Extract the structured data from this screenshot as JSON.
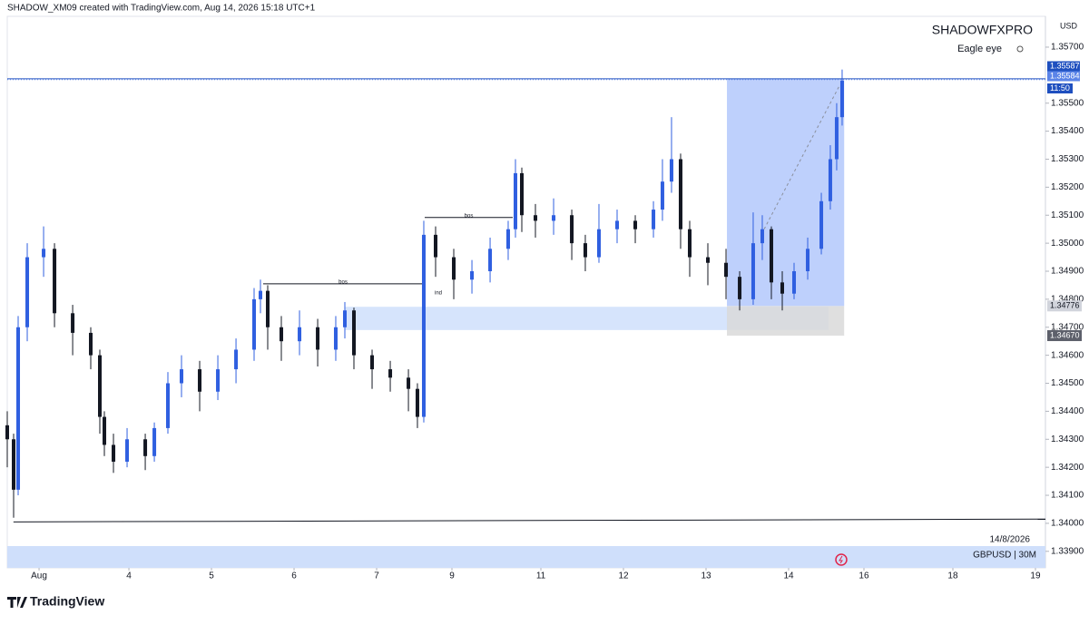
{
  "chart_data": {
    "type": "candlestick",
    "credit": "SHADOW_XM09 created with TradingView.com, Aug 14, 2026 15:18 UTC+1",
    "title": "SHADOWFXPRO",
    "subtitle": "Eagle eye",
    "currency": "USD",
    "date_label": "14/8/2026",
    "symbol": "GBPUSD | 30M",
    "brand": "TradingView",
    "up_color": "#2f5fe0",
    "down_color": "#131722",
    "grid": false,
    "xlim": [
      -0.385,
      12.187
    ],
    "ylim": [
      1.33841,
      1.3581
    ],
    "xticks": [
      {
        "value": 0,
        "label": "Aug"
      },
      {
        "value": 1.088,
        "label": "4"
      },
      {
        "value": 2.088,
        "label": "5"
      },
      {
        "value": 3.088,
        "label": "6"
      },
      {
        "value": 4.088,
        "label": "7"
      },
      {
        "value": 5.0,
        "label": "9"
      },
      {
        "value": 6.077,
        "label": "11"
      },
      {
        "value": 7.077,
        "label": "12"
      },
      {
        "value": 8.077,
        "label": "13"
      },
      {
        "value": 9.077,
        "label": "14"
      },
      {
        "value": 9.989,
        "label": "16"
      },
      {
        "value": 11.066,
        "label": "18"
      },
      {
        "value": 12.066,
        "label": "19"
      }
    ],
    "yticks": [
      {
        "value": 1.357,
        "label": "1.35700"
      },
      {
        "value": 1.355,
        "label": "1.35500"
      },
      {
        "value": 1.354,
        "label": "1.35400"
      },
      {
        "value": 1.353,
        "label": "1.35300"
      },
      {
        "value": 1.352,
        "label": "1.35200"
      },
      {
        "value": 1.351,
        "label": "1.35100"
      },
      {
        "value": 1.35,
        "label": "1.35000"
      },
      {
        "value": 1.349,
        "label": "1.34900"
      },
      {
        "value": 1.348,
        "label": "1.34800"
      },
      {
        "value": 1.347,
        "label": "1.34700"
      },
      {
        "value": 1.346,
        "label": "1.34600"
      },
      {
        "value": 1.345,
        "label": "1.34500"
      },
      {
        "value": 1.344,
        "label": "1.34400"
      },
      {
        "value": 1.343,
        "label": "1.34300"
      },
      {
        "value": 1.342,
        "label": "1.34200"
      },
      {
        "value": 1.341,
        "label": "1.34100"
      },
      {
        "value": 1.34,
        "label": "1.34000"
      },
      {
        "value": 1.339,
        "label": "1.33900"
      }
    ],
    "candles": {
      "x": [
        -0.385,
        -0.308,
        -0.253,
        -0.143,
        0.055,
        0.187,
        0.407,
        0.626,
        0.736,
        0.791,
        0.901,
        1.066,
        1.286,
        1.396,
        1.56,
        1.725,
        1.945,
        2.165,
        2.385,
        2.604,
        2.681,
        2.769,
        2.934,
        3.154,
        3.374,
        3.593,
        3.703,
        3.813,
        4.033,
        4.253,
        4.473,
        4.582,
        4.659,
        4.802,
        5.022,
        5.242,
        5.462,
        5.681,
        5.769,
        5.846,
        6.011,
        6.231,
        6.451,
        6.615,
        6.78,
        7.0,
        7.22,
        7.44,
        7.549,
        7.659,
        7.769,
        7.879,
        8.099,
        8.319,
        8.484,
        8.648,
        8.758,
        8.868,
        9.0,
        9.143,
        9.308,
        9.473,
        9.582,
        9.659,
        9.725
      ],
      "open": [
        1.3435,
        1.343,
        1.3412,
        1.347,
        1.3495,
        1.3498,
        1.3475,
        1.3468,
        1.346,
        1.3438,
        1.3428,
        1.3422,
        1.343,
        1.3424,
        1.3434,
        1.345,
        1.3455,
        1.3447,
        1.3455,
        1.3462,
        1.348,
        1.3483,
        1.347,
        1.3465,
        1.347,
        1.3462,
        1.347,
        1.3476,
        1.346,
        1.3455,
        1.3452,
        1.3448,
        1.3438,
        1.3503,
        1.3495,
        1.3487,
        1.349,
        1.3498,
        1.3505,
        1.3525,
        1.351,
        1.3508,
        1.351,
        1.35,
        1.3495,
        1.3505,
        1.3508,
        1.3505,
        1.3512,
        1.3522,
        1.353,
        1.3505,
        1.3495,
        1.3493,
        1.3488,
        1.348,
        1.35,
        1.3505,
        1.3486,
        1.3482,
        1.349,
        1.3498,
        1.3515,
        1.353,
        1.3545
      ],
      "high": [
        1.344,
        1.3432,
        1.3474,
        1.35,
        1.3506,
        1.35,
        1.3478,
        1.347,
        1.3462,
        1.344,
        1.3432,
        1.3434,
        1.3432,
        1.3436,
        1.3454,
        1.346,
        1.3458,
        1.346,
        1.3466,
        1.3484,
        1.3487,
        1.3485,
        1.3474,
        1.3476,
        1.3473,
        1.3474,
        1.3479,
        1.3477,
        1.3462,
        1.3458,
        1.3455,
        1.345,
        1.3508,
        1.3506,
        1.3498,
        1.3494,
        1.3502,
        1.3508,
        1.353,
        1.3527,
        1.3514,
        1.3516,
        1.3512,
        1.3503,
        1.3514,
        1.3512,
        1.351,
        1.3515,
        1.353,
        1.3545,
        1.3532,
        1.3508,
        1.35,
        1.3498,
        1.349,
        1.3511,
        1.351,
        1.3506,
        1.349,
        1.3493,
        1.3502,
        1.3518,
        1.3535,
        1.355,
        1.3562
      ],
      "low": [
        1.342,
        1.3402,
        1.341,
        1.3465,
        1.3488,
        1.347,
        1.346,
        1.3455,
        1.3432,
        1.3424,
        1.3418,
        1.342,
        1.3419,
        1.3422,
        1.3432,
        1.3445,
        1.344,
        1.3444,
        1.345,
        1.3458,
        1.3475,
        1.3462,
        1.3458,
        1.346,
        1.3456,
        1.3458,
        1.3466,
        1.3455,
        1.3448,
        1.3447,
        1.344,
        1.3434,
        1.3436,
        1.3488,
        1.348,
        1.3482,
        1.3486,
        1.3494,
        1.3502,
        1.3504,
        1.3502,
        1.3503,
        1.3494,
        1.349,
        1.3493,
        1.35,
        1.35,
        1.3502,
        1.3508,
        1.3518,
        1.3498,
        1.3488,
        1.3485,
        1.348,
        1.3476,
        1.3478,
        1.3494,
        1.348,
        1.3476,
        1.348,
        1.3487,
        1.3496,
        1.3512,
        1.3526,
        1.3542
      ],
      "close": [
        1.343,
        1.3412,
        1.347,
        1.3495,
        1.3498,
        1.3475,
        1.3468,
        1.346,
        1.3438,
        1.3428,
        1.3422,
        1.343,
        1.3424,
        1.3434,
        1.345,
        1.3455,
        1.3447,
        1.3455,
        1.3462,
        1.348,
        1.3483,
        1.347,
        1.3465,
        1.347,
        1.3462,
        1.347,
        1.3476,
        1.346,
        1.3455,
        1.3452,
        1.3448,
        1.3438,
        1.3503,
        1.3495,
        1.3487,
        1.349,
        1.3498,
        1.3505,
        1.3525,
        1.351,
        1.3508,
        1.351,
        1.35,
        1.3495,
        1.3505,
        1.3508,
        1.3505,
        1.3512,
        1.3522,
        1.353,
        1.3505,
        1.3495,
        1.3493,
        1.3488,
        1.348,
        1.35,
        1.3505,
        1.3486,
        1.3482,
        1.349,
        1.3498,
        1.3515,
        1.353,
        1.3545,
        1.3558
      ]
    },
    "zones": [
      {
        "x": [
          3.71,
          9.56
        ],
        "y": [
          1.3469,
          1.34773
        ],
        "color": "#cfdffb"
      },
      {
        "x": [
          8.33,
          9.75
        ],
        "y": [
          1.3467,
          1.34776
        ],
        "color": "#d9d9d9"
      },
      {
        "x": [
          8.33,
          9.75
        ],
        "y": [
          1.34776,
          1.35587
        ],
        "color": "#b3c8fb"
      }
    ],
    "levels": [
      {
        "value": 1.35587,
        "label": "1.35587",
        "color": "#1e4fbf",
        "dash": false
      },
      {
        "value": 1.35584,
        "label": "1.35584",
        "color": "#5b84e8",
        "dash": true
      }
    ],
    "countdown": "11:50",
    "price_marks": [
      {
        "value": 1.34776,
        "label": "1.34776",
        "color": "#d1d4dc",
        "text_color": "#131722"
      },
      {
        "value": 1.3467,
        "label": "1.34670",
        "color": "#5d606b",
        "text_color": "#ffffff"
      }
    ],
    "annotations": [
      {
        "text": "bos",
        "x": [
          2.714,
          4.648
        ],
        "y": 1.34855
      },
      {
        "text": "bos",
        "x": [
          4.67,
          5.736
        ],
        "y": 1.35092
      }
    ],
    "notes": [
      {
        "text": "ind",
        "x": 4.835,
        "y": 1.34823
      }
    ],
    "trendlines": [
      {
        "x": [
          -0.31,
          12.187
        ],
        "y": [
          1.34005,
          1.34015
        ],
        "color": "#131722",
        "dash": false
      },
      {
        "x": [
          8.75,
          9.69
        ],
        "y": [
          1.35033,
          1.35561
        ],
        "color": "#8a8f9c",
        "dash": true
      }
    ]
  }
}
